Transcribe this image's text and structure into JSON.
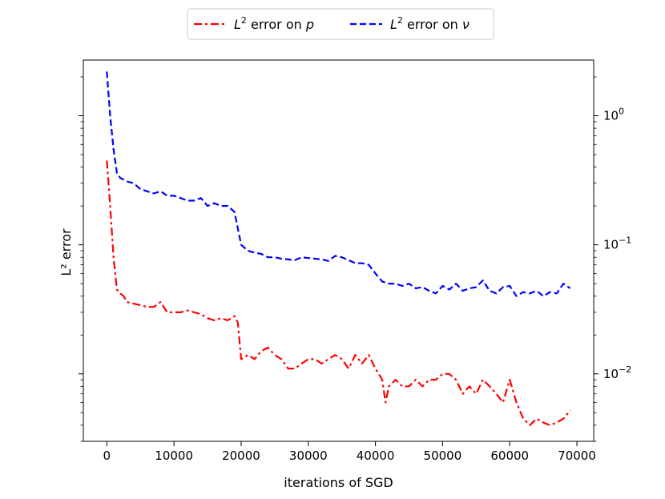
{
  "chart_data": {
    "type": "line",
    "title": "",
    "xlabel": "iterations of SGD",
    "ylabel": "L² error",
    "x_ticks": [
      0,
      10000,
      20000,
      30000,
      40000,
      50000,
      60000,
      70000
    ],
    "x_tick_labels": [
      "0",
      "10000",
      "20000",
      "30000",
      "40000",
      "50000",
      "60000",
      "70000"
    ],
    "xlim": [
      -3500,
      72500
    ],
    "ylim": [
      0.003,
      2.7
    ],
    "yscale": "log",
    "y_ticks": [
      0.01,
      0.1,
      1
    ],
    "y_tick_labels": [
      {
        "base": "10",
        "exp": "−2"
      },
      {
        "base": "10",
        "exp": "−1"
      },
      {
        "base": "10",
        "exp": "0"
      }
    ],
    "y_tick_side": "right",
    "grid": false,
    "legend_position": "top-center, outside plot",
    "series": [
      {
        "name_prefix": "L",
        "name_sup": "2",
        "name_suffix": " error on ",
        "name_var": "p",
        "color": "#ff0000",
        "dash": "dashdot",
        "x": [
          0,
          500,
          1000,
          1500,
          2000,
          2500,
          3000,
          4000,
          5000,
          6000,
          7000,
          8000,
          9000,
          10000,
          11000,
          12000,
          13000,
          14000,
          15000,
          16000,
          17000,
          18000,
          19000,
          19500,
          20000,
          21000,
          22000,
          23000,
          24000,
          25000,
          26000,
          27000,
          28000,
          29000,
          30000,
          31000,
          32000,
          33000,
          34000,
          35000,
          36000,
          37000,
          38000,
          39000,
          40000,
          41000,
          41500,
          42000,
          43000,
          44000,
          45000,
          46000,
          47000,
          48000,
          49000,
          50000,
          51000,
          52000,
          53000,
          54000,
          55000,
          56000,
          57000,
          58000,
          59000,
          60000,
          61000,
          62000,
          63000,
          64000,
          65000,
          66000,
          67000,
          68000,
          69000
        ],
        "values": [
          0.45,
          0.2,
          0.08,
          0.045,
          0.042,
          0.04,
          0.036,
          0.035,
          0.034,
          0.033,
          0.033,
          0.036,
          0.03,
          0.03,
          0.03,
          0.031,
          0.03,
          0.029,
          0.027,
          0.026,
          0.027,
          0.026,
          0.028,
          0.025,
          0.013,
          0.014,
          0.013,
          0.015,
          0.016,
          0.014,
          0.013,
          0.011,
          0.011,
          0.012,
          0.013,
          0.013,
          0.012,
          0.013,
          0.014,
          0.013,
          0.011,
          0.014,
          0.012,
          0.014,
          0.011,
          0.009,
          0.006,
          0.008,
          0.009,
          0.008,
          0.008,
          0.009,
          0.008,
          0.009,
          0.009,
          0.01,
          0.01,
          0.009,
          0.007,
          0.008,
          0.007,
          0.009,
          0.008,
          0.007,
          0.006,
          0.009,
          0.006,
          0.0045,
          0.004,
          0.0045,
          0.0042,
          0.004,
          0.0042,
          0.0045,
          0.0052
        ]
      },
      {
        "name_prefix": "L",
        "name_sup": "2",
        "name_suffix": " error on ",
        "name_var": "ν",
        "color": "#0000ff",
        "dash": "dashed",
        "x": [
          0,
          500,
          1000,
          1500,
          2000,
          3000,
          4000,
          5000,
          6000,
          7000,
          8000,
          9000,
          10000,
          11000,
          12000,
          13000,
          14000,
          15000,
          16000,
          17000,
          18000,
          19000,
          20000,
          21000,
          22000,
          23000,
          24000,
          25000,
          26000,
          27000,
          28000,
          29000,
          30000,
          31000,
          32000,
          33000,
          34000,
          35000,
          36000,
          37000,
          38000,
          39000,
          40000,
          41000,
          42000,
          43000,
          44000,
          45000,
          46000,
          47000,
          48000,
          49000,
          50000,
          51000,
          52000,
          53000,
          54000,
          55000,
          56000,
          57000,
          58000,
          59000,
          60000,
          61000,
          62000,
          63000,
          64000,
          65000,
          66000,
          67000,
          68000,
          69000
        ],
        "values": [
          2.2,
          1.0,
          0.55,
          0.36,
          0.33,
          0.31,
          0.3,
          0.27,
          0.26,
          0.25,
          0.26,
          0.24,
          0.24,
          0.23,
          0.22,
          0.22,
          0.23,
          0.2,
          0.21,
          0.2,
          0.2,
          0.18,
          0.1,
          0.09,
          0.087,
          0.085,
          0.08,
          0.08,
          0.078,
          0.077,
          0.076,
          0.08,
          0.079,
          0.078,
          0.077,
          0.075,
          0.082,
          0.08,
          0.076,
          0.072,
          0.072,
          0.07,
          0.06,
          0.052,
          0.05,
          0.05,
          0.048,
          0.05,
          0.046,
          0.047,
          0.044,
          0.042,
          0.048,
          0.045,
          0.05,
          0.044,
          0.046,
          0.047,
          0.053,
          0.044,
          0.042,
          0.047,
          0.048,
          0.04,
          0.043,
          0.042,
          0.044,
          0.04,
          0.043,
          0.042,
          0.05,
          0.046
        ]
      }
    ]
  }
}
